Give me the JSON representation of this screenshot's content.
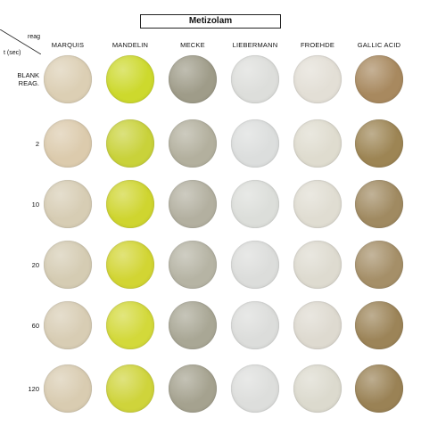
{
  "title": "Metizolam",
  "corner": {
    "reagent_label": "reag",
    "time_label": "t (sec)"
  },
  "columns": [
    {
      "label": "MARQUIS",
      "base_color": "#d8cdb4"
    },
    {
      "label": "MANDELIN",
      "base_color": "#cfd63a"
    },
    {
      "label": "MECKE",
      "base_color": "#a8a592"
    },
    {
      "label": "LIEBERMANN",
      "base_color": "#dedfdc"
    },
    {
      "label": "FROEHDE",
      "base_color": "#e0dbd0"
    },
    {
      "label": "GALLIC ACID",
      "base_color": "#9e8458"
    }
  ],
  "rows": [
    {
      "label": "BLANK\nREAG.",
      "colors": [
        "#dccfb4",
        "#cdd92d",
        "#9f9c89",
        "#dddedb",
        "#e3dfd6",
        "#a8895f"
      ]
    },
    {
      "label": "2",
      "colors": [
        "#dccbad",
        "#c9d23a",
        "#b3b09e",
        "#dcdedd",
        "#dfdccf",
        "#9d8554"
      ]
    },
    {
      "label": "10",
      "colors": [
        "#d7cdb4",
        "#cfd52f",
        "#b3b0a0",
        "#dcdeda",
        "#e0ddd2",
        "#a08a61"
      ]
    },
    {
      "label": "20",
      "colors": [
        "#d5ccb3",
        "#d2d533",
        "#b6b4a4",
        "#dcdddb",
        "#dedbd0",
        "#a58f68"
      ]
    },
    {
      "label": "60",
      "colors": [
        "#d8cdb4",
        "#d3d93a",
        "#a9a795",
        "#dcdddb",
        "#dedad0",
        "#9c8458"
      ]
    },
    {
      "label": "120",
      "colors": [
        "#d9ccb1",
        "#cfd43b",
        "#a5a28f",
        "#dddedc",
        "#dcdace",
        "#9a8255"
      ]
    }
  ]
}
